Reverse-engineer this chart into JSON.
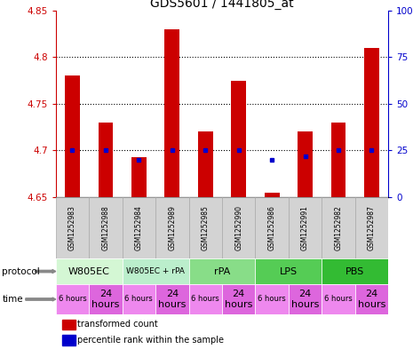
{
  "title": "GDS5601 / 1441805_at",
  "samples": [
    "GSM1252983",
    "GSM1252988",
    "GSM1252984",
    "GSM1252989",
    "GSM1252985",
    "GSM1252990",
    "GSM1252986",
    "GSM1252991",
    "GSM1252982",
    "GSM1252987"
  ],
  "transformed_count": [
    4.78,
    4.73,
    4.693,
    4.83,
    4.72,
    4.775,
    4.655,
    4.72,
    4.73,
    4.81
  ],
  "percentile_rank": [
    25,
    25,
    20,
    25,
    25,
    25,
    20,
    22,
    25,
    25
  ],
  "ylim": [
    4.65,
    4.85
  ],
  "yticks_left": [
    4.65,
    4.7,
    4.75,
    4.8,
    4.85
  ],
  "yticks_right": [
    0,
    25,
    50,
    75,
    100
  ],
  "bar_color": "#cc0000",
  "dot_color": "#0000cc",
  "bar_bottom": 4.65,
  "grid_lines": [
    4.7,
    4.75,
    4.8
  ],
  "left_axis_color": "#cc0000",
  "right_axis_color": "#0000cc",
  "title_fontsize": 10,
  "protocols": [
    {
      "label": "W805EC",
      "start": 0,
      "end": 2,
      "color": "#d4f7d4"
    },
    {
      "label": "W805EC + rPA",
      "start": 2,
      "end": 4,
      "color": "#bbeecc"
    },
    {
      "label": "rPA",
      "start": 4,
      "end": 6,
      "color": "#88dd88"
    },
    {
      "label": "LPS",
      "start": 6,
      "end": 8,
      "color": "#55cc55"
    },
    {
      "label": "PBS",
      "start": 8,
      "end": 10,
      "color": "#33bb33"
    }
  ],
  "time_6h_color": "#ee88ee",
  "time_24h_color": "#dd66dd",
  "sample_bg_color": "#d3d3d3",
  "sample_border_color": "#aaaaaa"
}
